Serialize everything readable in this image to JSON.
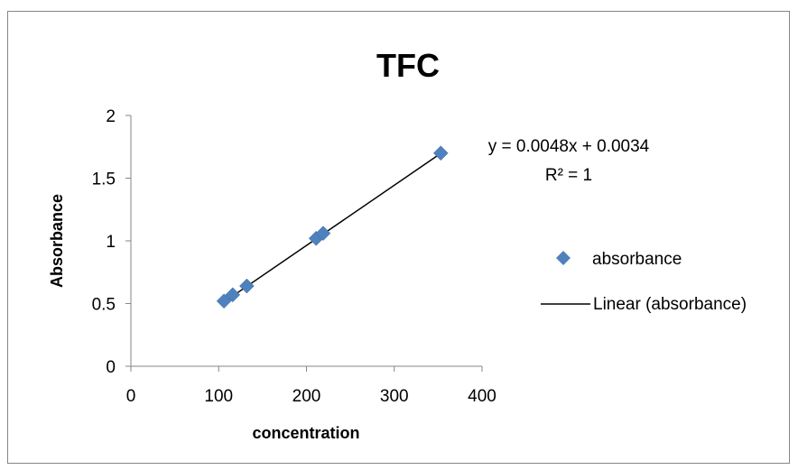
{
  "chart_data": {
    "type": "scatter",
    "title": "TFC",
    "xlabel": "concentration",
    "ylabel": "Absorbance",
    "xlim": [
      0,
      400
    ],
    "ylim": [
      0,
      2
    ],
    "xticks": [
      0,
      100,
      200,
      300,
      400
    ],
    "yticks": [
      0,
      0.5,
      1,
      1.5,
      2
    ],
    "xtick_labels": [
      "0",
      "100",
      "200",
      "300",
      "400"
    ],
    "ytick_labels": [
      "0",
      "0.5",
      "1",
      "1.5",
      "2"
    ],
    "grid": false,
    "legend_position": "right",
    "series": [
      {
        "name": "absorbance",
        "marker": "diamond",
        "color": "#4f81bd",
        "points": [
          {
            "x": 106,
            "y": 0.52
          },
          {
            "x": 116,
            "y": 0.57
          },
          {
            "x": 132,
            "y": 0.64
          },
          {
            "x": 211,
            "y": 1.02
          },
          {
            "x": 219,
            "y": 1.06
          },
          {
            "x": 353,
            "y": 1.7
          }
        ]
      }
    ],
    "trendline": {
      "name": "Linear (absorbance)",
      "type": "linear",
      "slope": 0.0048,
      "intercept": 0.0034,
      "color": "#000000",
      "x_range": [
        106,
        353
      ],
      "equation_label": "y = 0.0048x + 0.0034",
      "r2_label": "R² = 1"
    },
    "legend": [
      "absorbance",
      "Linear (absorbance)"
    ]
  }
}
